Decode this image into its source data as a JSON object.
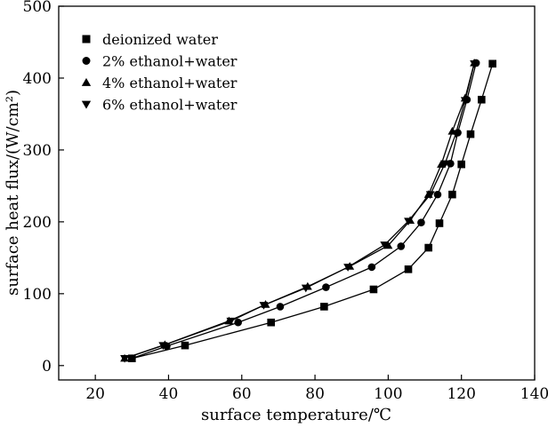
{
  "chart_data": {
    "type": "line",
    "xlabel": "surface temperature/℃",
    "ylabel": "surface heat flux/(W/cm²)",
    "xlim": [
      10,
      140
    ],
    "ylim": [
      -20,
      500
    ],
    "xticks": [
      20,
      40,
      60,
      80,
      100,
      120,
      140
    ],
    "yticks": [
      0,
      100,
      200,
      300,
      400,
      500
    ],
    "legend_position": "top-left",
    "series": [
      {
        "name": "deionized water",
        "marker": "square",
        "x": [
          30,
          44.5,
          68,
          82.5,
          96,
          105.5,
          111,
          114,
          117.5,
          120,
          122.5,
          125.5,
          128.5
        ],
        "y": [
          10,
          28,
          60,
          82,
          106,
          134,
          164,
          198,
          238,
          280,
          322,
          370,
          420
        ]
      },
      {
        "name": "2% ethanol+water",
        "marker": "circle",
        "x": [
          30,
          39.5,
          59,
          70.5,
          83,
          95.5,
          103.5,
          109,
          113.5,
          117,
          119,
          121.5,
          124
        ],
        "y": [
          10,
          27,
          60,
          82,
          109,
          137,
          166,
          199,
          238,
          281,
          324,
          370,
          421
        ]
      },
      {
        "name": "4% ethanol+water",
        "marker": "triangle-up",
        "x": [
          28,
          39,
          56.5,
          66.5,
          78,
          89.5,
          100,
          106,
          111,
          114.5,
          117.5,
          121,
          123.5
        ],
        "y": [
          10,
          29,
          62,
          85,
          110,
          138,
          167,
          202,
          238,
          280,
          326,
          372,
          421
        ]
      },
      {
        "name": "6% ethanol+water",
        "marker": "triangle-down",
        "x": [
          28,
          38.5,
          57,
          66,
          77.5,
          89,
          99,
          105.5,
          111.5,
          115.5,
          118.5,
          121,
          123.5
        ],
        "y": [
          10,
          28,
          62,
          84,
          108,
          137,
          168,
          201,
          238,
          281,
          323,
          369,
          420
        ]
      }
    ]
  }
}
